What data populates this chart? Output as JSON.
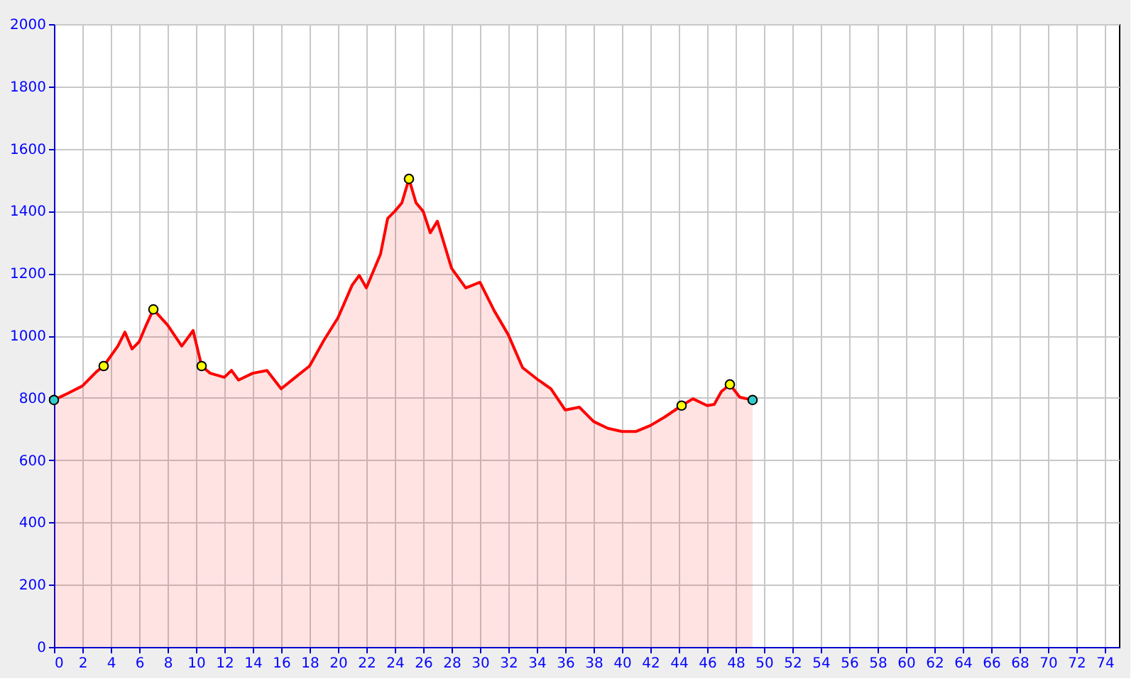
{
  "chart_data": {
    "type": "area",
    "xlim": [
      0,
      75
    ],
    "ylim": [
      0,
      2000
    ],
    "xticks": [
      0,
      2,
      4,
      6,
      8,
      10,
      12,
      14,
      16,
      18,
      20,
      22,
      24,
      26,
      28,
      30,
      32,
      34,
      36,
      38,
      40,
      42,
      44,
      46,
      48,
      50,
      52,
      54,
      56,
      58,
      60,
      62,
      64,
      66,
      68,
      70,
      72,
      74
    ],
    "yticks": [
      0,
      200,
      400,
      600,
      800,
      1000,
      1200,
      1400,
      1600,
      1800,
      2000
    ],
    "grid": true,
    "series": [
      {
        "color": "#ff0000",
        "marker": "none",
        "x": [
          0,
          1,
          2,
          2.5,
          3,
          3.5,
          4.5,
          5,
          5.5,
          6,
          6.5,
          7,
          8,
          9,
          9.8,
          10.4,
          11,
          12,
          12.5,
          13,
          14,
          15,
          16,
          17,
          18,
          19,
          20,
          21,
          21.5,
          22,
          23,
          23.5,
          24,
          24.5,
          25,
          25.5,
          26,
          26.5,
          27,
          28,
          29,
          30,
          31,
          32,
          33,
          34,
          35,
          36,
          37,
          38,
          39,
          40,
          41,
          42,
          43,
          44.2,
          45,
          46,
          46.5,
          47,
          47.6,
          48.3,
          49.2
        ],
        "values": [
          793,
          815,
          838,
          861,
          884,
          902,
          966,
          1011,
          957,
          980,
          1034,
          1084,
          1034,
          966,
          1016,
          902,
          879,
          866,
          888,
          857,
          879,
          888,
          829,
          866,
          902,
          984,
          1057,
          1162,
          1193,
          1153,
          1262,
          1376,
          1399,
          1426,
          1503,
          1426,
          1399,
          1330,
          1367,
          1216,
          1153,
          1171,
          1080,
          1002,
          897,
          861,
          829,
          761,
          770,
          724,
          702,
          692,
          692,
          711,
          738,
          775,
          797,
          775,
          779,
          820,
          843,
          802,
          793
        ]
      },
      {
        "type": "scatter",
        "color": "#ffff00",
        "marker": "circle",
        "x": [
          3.5,
          7,
          10.4,
          25,
          44.2,
          47.6
        ],
        "values": [
          902,
          1084,
          902,
          1503,
          775,
          843
        ]
      },
      {
        "type": "scatter",
        "color": "#33cccc",
        "marker": "circle",
        "x": [
          0,
          49.2
        ],
        "values": [
          793,
          793
        ]
      }
    ]
  }
}
